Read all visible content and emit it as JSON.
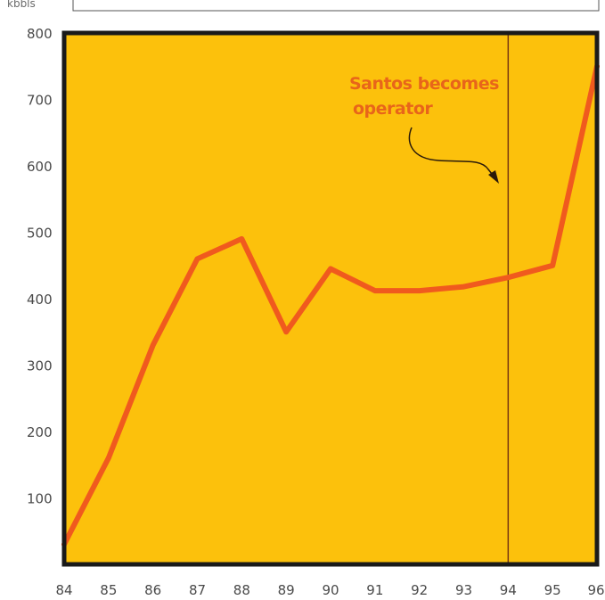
{
  "chart_data": {
    "type": "line",
    "unit_label": "kbbls",
    "x": [
      "84",
      "85",
      "86",
      "87",
      "88",
      "89",
      "90",
      "91",
      "92",
      "93",
      "94",
      "95",
      "96"
    ],
    "series": [
      {
        "values": [
          30,
          160,
          330,
          460,
          490,
          350,
          445,
          412,
          412,
          418,
          432,
          450,
          750
        ],
        "color": "#f05a1e"
      }
    ],
    "ylim": [
      0,
      800
    ],
    "yticks": [
      "100",
      "200",
      "300",
      "400",
      "500",
      "600",
      "700",
      "800"
    ],
    "annotation": {
      "lines": [
        "Santos becomes",
        "operator"
      ],
      "x": "94"
    },
    "colors": {
      "plot_bg": "#fcc10c",
      "frame": "#1a1a1a",
      "line": "#f05a1e",
      "annotation": "#e8651a"
    },
    "grid": false
  }
}
